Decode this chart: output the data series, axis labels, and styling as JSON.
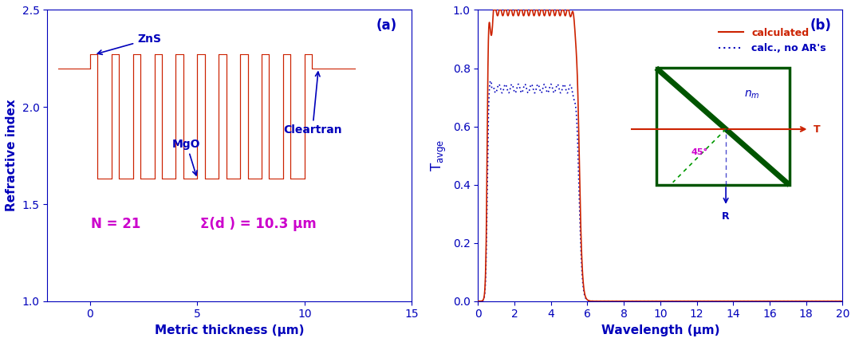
{
  "panel_a": {
    "xlabel": "Metric thickness (μm)",
    "ylabel": "Refractive index",
    "xlim": [
      -2,
      15
    ],
    "ylim": [
      1.0,
      2.5
    ],
    "xticks": [
      0,
      5,
      10,
      15
    ],
    "yticks": [
      1.0,
      1.5,
      2.0,
      2.5
    ],
    "n_cleartran": 2.2,
    "n_ZnS": 2.27,
    "n_MgO": 1.63,
    "d_ZnS": 0.35,
    "d_MgO": 0.65,
    "n_layers": 21,
    "label": "(a)",
    "N_text": "N = 21",
    "sum_text": "Σ(d ) = 10.3 μm",
    "axis_color": "#0000BB",
    "line_color": "#CC2200",
    "annotation_color": "#CC00CC",
    "arrow_color": "#0000BB"
  },
  "panel_b": {
    "xlabel": "Wavelength (μm)",
    "xlim": [
      0,
      20
    ],
    "ylim": [
      0.0,
      1.0
    ],
    "xticks": [
      0,
      2,
      4,
      6,
      8,
      10,
      12,
      14,
      16,
      18,
      20
    ],
    "yticks": [
      0.0,
      0.2,
      0.4,
      0.6,
      0.8,
      1.0
    ],
    "label": "(b)",
    "calc_color": "#CC2200",
    "no_ar_color": "#0000BB",
    "axis_color": "#0000BB",
    "inset_box_color": "#005500",
    "prism_diag_color": "#005500",
    "beam_color": "#CC2200",
    "reflect_color": "#009900",
    "angle_color": "#CC00CC",
    "nm_color": "#0000BB",
    "R_color": "#0000BB",
    "T_color": "#CC2200",
    "cutoff_wl": 5.55,
    "T_max_calc": 0.995,
    "T_max_no_ar": 0.73
  }
}
